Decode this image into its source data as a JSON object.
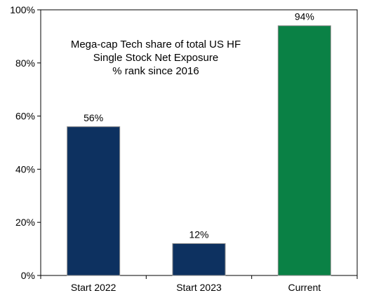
{
  "chart_data": {
    "type": "bar",
    "title_lines": [
      "Mega-cap Tech share of total US HF",
      "Single Stock Net Exposure",
      "% rank since 2016"
    ],
    "categories": [
      "Start 2022",
      "Start 2023",
      "Current"
    ],
    "values": [
      56,
      12,
      94
    ],
    "data_labels": [
      "56%",
      "12%",
      "94%"
    ],
    "bar_colors": [
      "#0D3160",
      "#0D3160",
      "#0A8145"
    ],
    "y_ticks": [
      0,
      20,
      40,
      60,
      80,
      100
    ],
    "y_tick_labels": [
      "0%",
      "20%",
      "40%",
      "60%",
      "80%",
      "100%"
    ],
    "ylim": [
      0,
      100
    ],
    "grid": false,
    "legend": "none"
  }
}
